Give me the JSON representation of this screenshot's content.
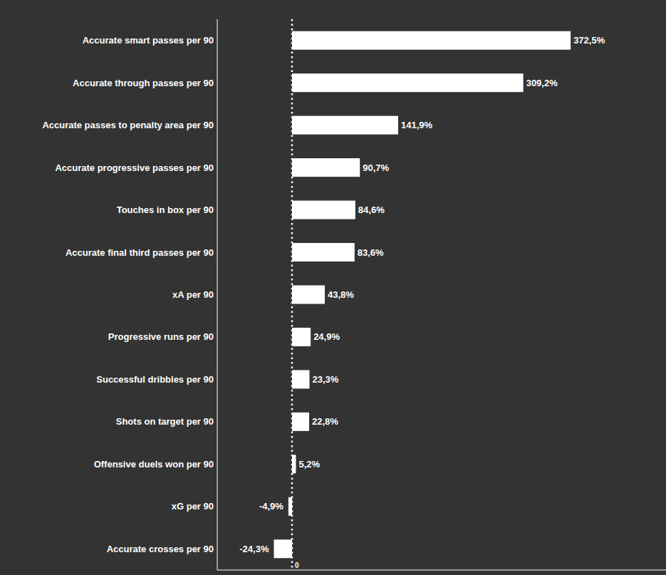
{
  "chart_data": {
    "type": "bar",
    "orientation": "horizontal",
    "categories": [
      "Accurate smart passes per 90",
      "Accurate through passes per 90",
      "Accurate passes to penalty area per 90",
      "Accurate progressive passes per 90",
      "Touches in box per 90",
      "Accurate final third passes per 90",
      "xA per 90",
      "Progressive runs per 90",
      "Successful dribbles per 90",
      "Shots on target per 90",
      "Offensive duels won per 90",
      "xG per 90",
      "Accurate crosses per 90"
    ],
    "values": [
      372.5,
      309.2,
      141.9,
      90.7,
      84.6,
      83.6,
      43.8,
      24.9,
      23.3,
      22.8,
      5.2,
      -4.9,
      -24.3
    ],
    "value_labels": [
      "372,5%",
      "309,2%",
      "141,9%",
      "90,7%",
      "84,6%",
      "83,6%",
      "43,8%",
      "24,9%",
      "23,3%",
      "22,8%",
      "5,2%",
      "-4,9%",
      "-24,3%"
    ],
    "color": "#ffffff",
    "xlim": [
      -100,
      500
    ],
    "xticks": [
      0
    ],
    "grid": true,
    "data_labels": true,
    "tick_labels": "x"
  }
}
